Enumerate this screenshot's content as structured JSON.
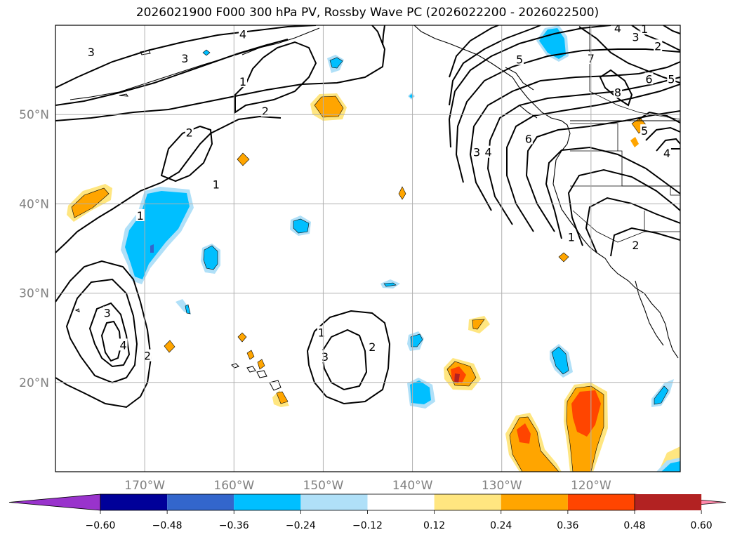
{
  "title": "2026021900 F000 300 hPa PV, Rossby Wave PC (2026022200 - 2026022500)",
  "map": {
    "lon_range": [
      -180,
      -110
    ],
    "lat_range": [
      10,
      60
    ],
    "lon_ticks": [
      {
        "lon": -170,
        "label": "170°W"
      },
      {
        "lon": -160,
        "label": "160°W"
      },
      {
        "lon": -150,
        "label": "150°W"
      },
      {
        "lon": -140,
        "label": "140°W"
      },
      {
        "lon": -130,
        "label": "130°W"
      },
      {
        "lon": -120,
        "label": "120°W"
      }
    ],
    "lat_ticks": [
      {
        "lat": 50,
        "label": "50°N"
      },
      {
        "lat": 40,
        "label": "40°N"
      },
      {
        "lat": 30,
        "label": "30°N"
      },
      {
        "lat": 20,
        "label": "20°N"
      }
    ],
    "contour_labels": [
      {
        "text": "3",
        "lon": -176,
        "lat": 57
      },
      {
        "text": "3",
        "lon": -165.5,
        "lat": 56.3
      },
      {
        "text": "4",
        "lon": -159,
        "lat": 59
      },
      {
        "text": "1",
        "lon": -159,
        "lat": 53.7
      },
      {
        "text": "2",
        "lon": -156.5,
        "lat": 50.4
      },
      {
        "text": "2",
        "lon": -165,
        "lat": 48
      },
      {
        "text": "1",
        "lon": -162,
        "lat": 42.2
      },
      {
        "text": "1",
        "lon": -170.5,
        "lat": 38.7
      },
      {
        "text": "3",
        "lon": -174.2,
        "lat": 27.8
      },
      {
        "text": "4",
        "lon": -172.4,
        "lat": 24.2
      },
      {
        "text": "2",
        "lon": -169.7,
        "lat": 23
      },
      {
        "text": "1",
        "lon": -150.2,
        "lat": 25.6
      },
      {
        "text": "3",
        "lon": -149.8,
        "lat": 22.9
      },
      {
        "text": "2",
        "lon": -144.5,
        "lat": 24
      },
      {
        "text": "5",
        "lon": -128,
        "lat": 56.2
      },
      {
        "text": "3",
        "lon": -132.8,
        "lat": 45.8
      },
      {
        "text": "4",
        "lon": -131.5,
        "lat": 45.8
      },
      {
        "text": "6",
        "lon": -127,
        "lat": 47.3
      },
      {
        "text": "7",
        "lon": -120,
        "lat": 56.3
      },
      {
        "text": "8",
        "lon": -117,
        "lat": 52.5
      },
      {
        "text": "6",
        "lon": -113.5,
        "lat": 54
      },
      {
        "text": "5",
        "lon": -111,
        "lat": 54
      },
      {
        "text": "3",
        "lon": -115,
        "lat": 58.7
      },
      {
        "text": "2",
        "lon": -112.5,
        "lat": 57.7
      },
      {
        "text": "4",
        "lon": -117,
        "lat": 59.7
      },
      {
        "text": "1",
        "lon": -114,
        "lat": 59.6
      },
      {
        "text": "5",
        "lon": -114,
        "lat": 48.2
      },
      {
        "text": "4",
        "lon": -111.5,
        "lat": 45.7
      },
      {
        "text": "1",
        "lon": -122.2,
        "lat": 36.3
      },
      {
        "text": "2",
        "lon": -115,
        "lat": 35.4
      }
    ]
  },
  "colorbar": {
    "ticks": [
      "−0.60",
      "−0.48",
      "−0.36",
      "−0.24",
      "−0.12",
      "0.12",
      "0.24",
      "0.36",
      "0.48",
      "0.60"
    ],
    "colors": [
      "#9933cc",
      "#000099",
      "#3366cc",
      "#00bfff",
      "#b0e0f8",
      "#ffffff",
      "#ffe680",
      "#ffa500",
      "#ff4500",
      "#b22222",
      "#ff88aa"
    ]
  }
}
